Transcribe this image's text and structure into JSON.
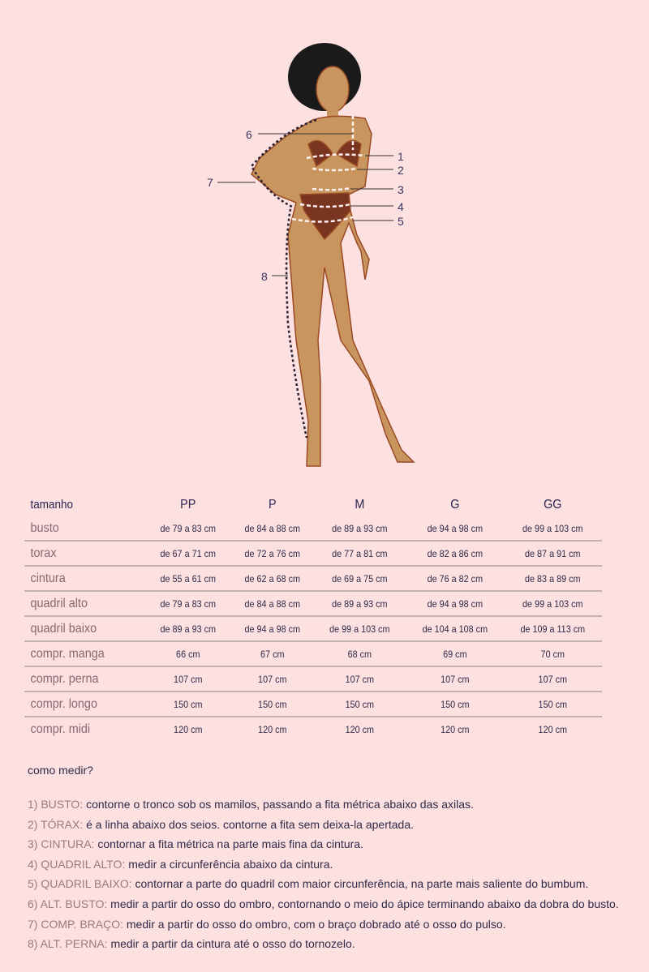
{
  "figure": {
    "labels": [
      "1",
      "2",
      "3",
      "4",
      "5",
      "6",
      "7",
      "8"
    ]
  },
  "table": {
    "header": [
      "tamanho",
      "PP",
      "P",
      "M",
      "G",
      "GG"
    ],
    "rows": [
      {
        "label": "busto",
        "values": [
          "de 79 a 83 cm",
          "de 84 a 88 cm",
          "de 89 a 93 cm",
          "de 94 a 98 cm",
          "de 99 a 103 cm"
        ]
      },
      {
        "label": "torax",
        "values": [
          "de 67 a 71 cm",
          "de 72 a 76 cm",
          "de 77 a 81 cm",
          "de 82 a 86 cm",
          "de 87 a 91 cm"
        ]
      },
      {
        "label": "cintura",
        "values": [
          "de 55 a 61 cm",
          "de 62 a 68 cm",
          "de 69 a 75 cm",
          "de 76 a 82 cm",
          "de 83 a 89 cm"
        ]
      },
      {
        "label": "quadril alto",
        "values": [
          "de 79 a 83 cm",
          "de 84 a 88 cm",
          "de 89 a 93 cm",
          "de 94 a 98 cm",
          "de 99 a 103 cm"
        ]
      },
      {
        "label": "quadril baixo",
        "values": [
          "de 89 a 93 cm",
          "de 94 a 98 cm",
          "de 99 a 103 cm",
          "de 104 a 108 cm",
          "de 109 a 113 cm"
        ]
      },
      {
        "label": "compr. manga",
        "values": [
          "66 cm",
          "67 cm",
          "68 cm",
          "69 cm",
          "70 cm"
        ]
      },
      {
        "label": "compr. perna",
        "values": [
          "107 cm",
          "107 cm",
          "107 cm",
          "107 cm",
          "107 cm"
        ]
      },
      {
        "label": "compr. longo",
        "values": [
          "150 cm",
          "150 cm",
          "150 cm",
          "150 cm",
          "150 cm"
        ]
      },
      {
        "label": "compr. midi",
        "values": [
          "120 cm",
          "120 cm",
          "120 cm",
          "120 cm",
          "120 cm"
        ]
      }
    ]
  },
  "howto": {
    "title": "como medir?",
    "steps": [
      {
        "key": "1) BUSTO:",
        "text": " contorne o tronco sob os mamilos, passando a fita métrica abaixo das axilas."
      },
      {
        "key": "2) TÓRAX:",
        "text": " é a linha abaixo dos seios. contorne a fita sem deixa-la apertada."
      },
      {
        "key": "3) CINTURA:",
        "text": " contornar a fita métrica na parte mais fina da cintura."
      },
      {
        "key": "4) QUADRIL ALTO:",
        "text": " medir a circunferência abaixo da cintura."
      },
      {
        "key": "5) QUADRIL BAIXO:",
        "text": " contornar a parte do quadril com maior circunferência, na parte mais saliente do bumbum."
      },
      {
        "key": "6) ALT. BUSTO:",
        "text": " medir a partir do osso do ombro, contornando o meio do ápice terminando abaixo da dobra do busto."
      },
      {
        "key": "7) COMP. BRAÇO:",
        "text": " medir a partir do osso do ombro, com o braço dobrado até o osso do pulso."
      },
      {
        "key": "8) ALT. PERNA:",
        "text": " medir a partir da cintura até o osso do tornozelo."
      }
    ]
  },
  "colors": {
    "background": "#fde0e0",
    "header": "#2a2552",
    "row_label": "#8a6670",
    "skin": "#c8955e",
    "bikini": "#7a3520",
    "hair": "#1a1a1a"
  }
}
